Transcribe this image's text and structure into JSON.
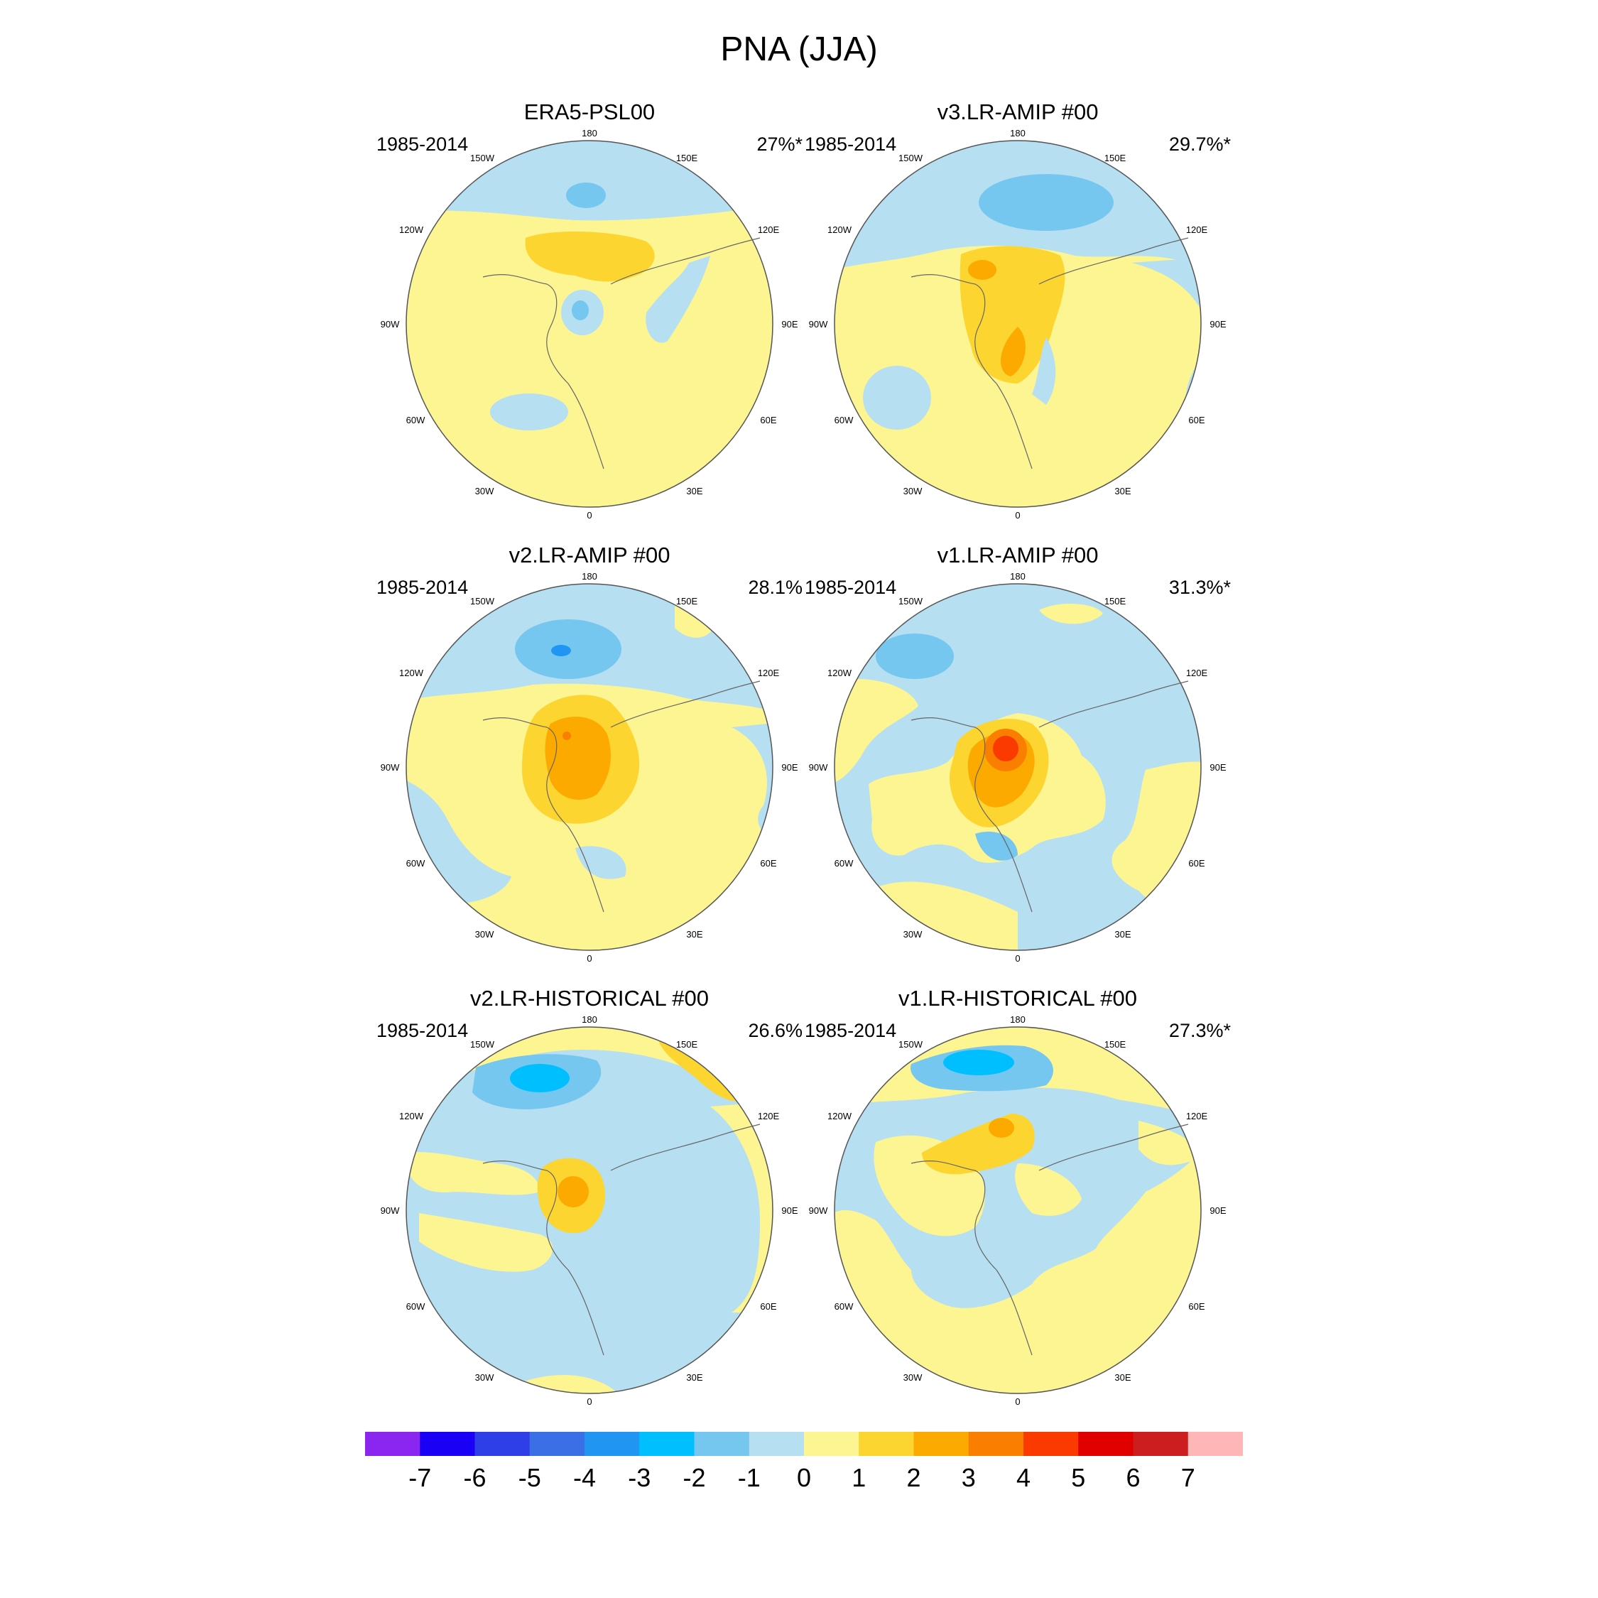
{
  "title": "PNA (JJA)",
  "panels": [
    {
      "title": "ERA5-PSL00",
      "period": "1985-2014",
      "percent": "27%*"
    },
    {
      "title": "v3.LR-AMIP  #00",
      "period": "1985-2014",
      "percent": "29.7%*"
    },
    {
      "title": "v2.LR-AMIP  #00",
      "period": "1985-2014",
      "percent": "28.1%"
    },
    {
      "title": "v1.LR-AMIP  #00",
      "period": "1985-2014",
      "percent": "31.3%*"
    },
    {
      "title": "v2.LR-HISTORICAL  #00",
      "period": "1985-2014",
      "percent": "26.6%"
    },
    {
      "title": "v1.LR-HISTORICAL  #00",
      "period": "1985-2014",
      "percent": "27.3%*"
    }
  ],
  "lon_labels": [
    "180",
    "150E",
    "120E",
    "90E",
    "60E",
    "30E",
    "0",
    "30W",
    "60W",
    "90W",
    "120W",
    "150W"
  ],
  "colorbar": {
    "labels": [
      "-7",
      "-6",
      "-5",
      "-4",
      "-3",
      "-2",
      "-1",
      "0",
      "1",
      "2",
      "3",
      "4",
      "5",
      "6",
      "7"
    ],
    "colors": [
      "#8a26f0",
      "#1a00f5",
      "#2e3fe8",
      "#3a6fe6",
      "#2096f2",
      "#00bfff",
      "#75c7f0",
      "#b6dff2",
      "#fdf592",
      "#fcd530",
      "#fcaa00",
      "#fa7e00",
      "#fa3a00",
      "#e00000",
      "#cc1e1e",
      "#ffb6b6"
    ]
  }
}
